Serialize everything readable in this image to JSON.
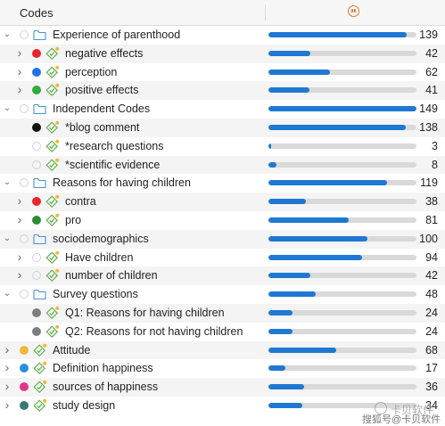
{
  "header": {
    "title": "Codes",
    "frequency_icon": "frequency-icon"
  },
  "max_count": 149,
  "rows": [
    {
      "label": "Experience of parenthood",
      "count": 139,
      "depth": 0,
      "chevron": "down",
      "kind": "folder",
      "color": ""
    },
    {
      "label": "negative effects",
      "count": 42,
      "depth": 1,
      "chevron": "right",
      "kind": "code",
      "color": "#e8262b"
    },
    {
      "label": "perception",
      "count": 62,
      "depth": 1,
      "chevron": "right",
      "kind": "code",
      "color": "#1e73e8"
    },
    {
      "label": "positive effects",
      "count": 41,
      "depth": 1,
      "chevron": "right",
      "kind": "code",
      "color": "#2eab3a"
    },
    {
      "label": "Independent Codes",
      "count": 149,
      "depth": 0,
      "chevron": "down",
      "kind": "folder",
      "color": ""
    },
    {
      "label": "*blog comment",
      "count": 138,
      "depth": 1,
      "chevron": "none",
      "kind": "code",
      "color": "#111111"
    },
    {
      "label": "*research questions",
      "count": 3,
      "depth": 1,
      "chevron": "none",
      "kind": "code",
      "color": ""
    },
    {
      "label": "*scientific evidence",
      "count": 8,
      "depth": 1,
      "chevron": "none",
      "kind": "code",
      "color": ""
    },
    {
      "label": "Reasons for having children",
      "count": 119,
      "depth": 0,
      "chevron": "down",
      "kind": "folder",
      "color": ""
    },
    {
      "label": "contra",
      "count": 38,
      "depth": 1,
      "chevron": "right",
      "kind": "code",
      "color": "#e8262b"
    },
    {
      "label": "pro",
      "count": 81,
      "depth": 1,
      "chevron": "right",
      "kind": "code",
      "color": "#2e8a35"
    },
    {
      "label": "sociodemographics",
      "count": 100,
      "depth": 0,
      "chevron": "down",
      "kind": "folder",
      "color": ""
    },
    {
      "label": "Have children",
      "count": 94,
      "depth": 1,
      "chevron": "right",
      "kind": "code",
      "color": ""
    },
    {
      "label": "number of children",
      "count": 42,
      "depth": 1,
      "chevron": "right",
      "kind": "code",
      "color": ""
    },
    {
      "label": "Survey questions",
      "count": 48,
      "depth": 0,
      "chevron": "down",
      "kind": "folder",
      "color": ""
    },
    {
      "label": "Q1: Reasons for having children",
      "count": 24,
      "depth": 1,
      "chevron": "none",
      "kind": "code",
      "color": "#7d7d7d"
    },
    {
      "label": "Q2: Reasons for not having children",
      "count": 24,
      "depth": 1,
      "chevron": "none",
      "kind": "code",
      "color": "#7d7d7d"
    },
    {
      "label": "Attitude",
      "count": 68,
      "depth": 0,
      "chevron": "right",
      "kind": "code",
      "color": "#f2b53a"
    },
    {
      "label": "Definition happiness",
      "count": 17,
      "depth": 0,
      "chevron": "right",
      "kind": "code",
      "color": "#2a8fe0"
    },
    {
      "label": "sources of happiness",
      "count": 36,
      "depth": 0,
      "chevron": "right",
      "kind": "code",
      "color": "#e0358d"
    },
    {
      "label": "study design",
      "count": 34,
      "depth": 0,
      "chevron": "right",
      "kind": "code",
      "color": "#357a78"
    }
  ],
  "watermark": {
    "line1": "卡贝软件",
    "line2": "搜狐号@卡贝软件"
  }
}
